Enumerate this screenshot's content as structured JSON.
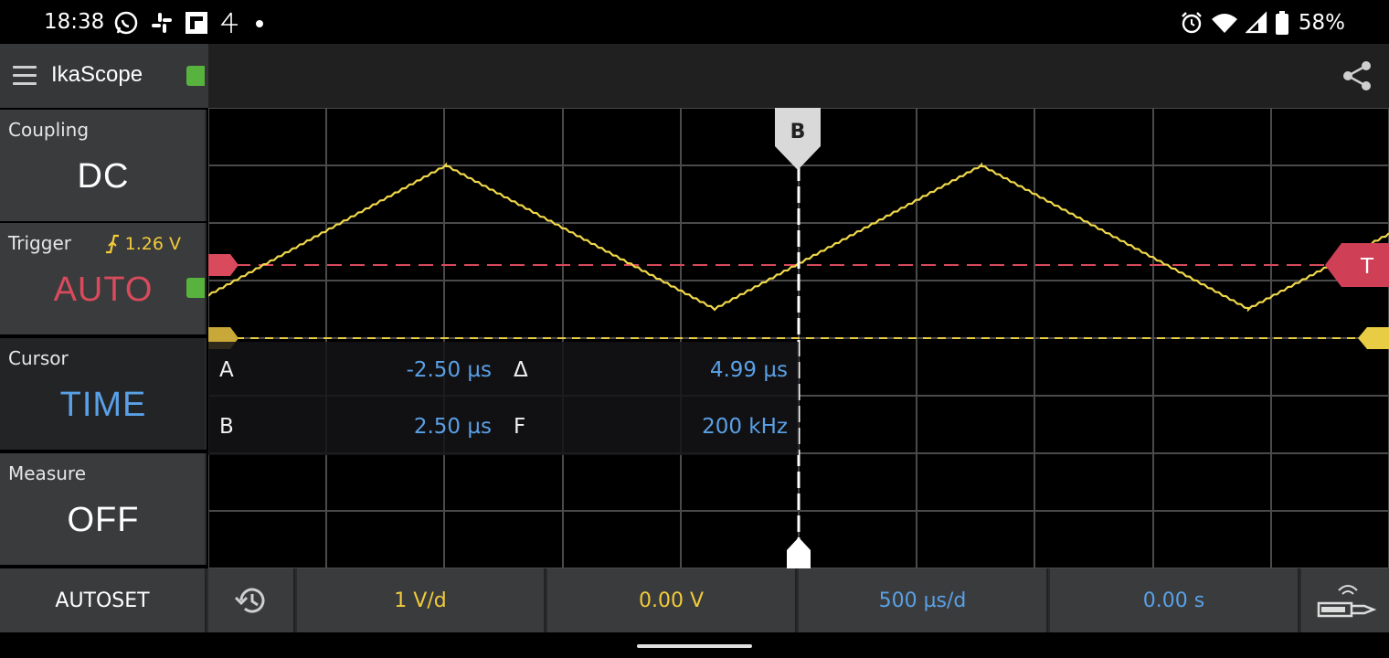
{
  "status_bar": {
    "time": "18:38",
    "battery_percent": "58%",
    "left_icons": [
      "whatsapp-icon",
      "slack-icon",
      "flipboard-icon",
      "channel4-icon",
      "dot-icon"
    ],
    "right_icons": [
      "alarm-icon",
      "wifi-icon",
      "signal-icon",
      "battery-icon"
    ]
  },
  "app": {
    "title": "IkaScope",
    "connection_indicator_color": "#57b33d"
  },
  "controls": {
    "coupling": {
      "label": "Coupling",
      "value": "DC",
      "value_color": "#ffffff"
    },
    "trigger": {
      "label": "Trigger",
      "level": "1.26 V",
      "value": "AUTO",
      "value_color": "#d84a5c"
    },
    "cursor": {
      "label": "Cursor",
      "value": "TIME",
      "value_color": "#5aa0e6"
    },
    "measure": {
      "label": "Measure",
      "value": "OFF",
      "value_color": "#ffffff"
    }
  },
  "scope": {
    "cursor_b_label": "B",
    "trigger_marker_label": "T",
    "trace_color": "#f0d84a",
    "trigger_line_color": "#d84a5c",
    "cursor_table": {
      "a_key": "A",
      "a_value": "-2.50 µs",
      "delta_key": "Δ",
      "delta_value": "4.99 µs",
      "b_key": "B",
      "b_value": "2.50 µs",
      "f_key": "F",
      "f_value": "200 kHz"
    }
  },
  "bottom_bar": {
    "autoset": "AUTOSET",
    "volts_per_div": "1 V/d",
    "offset": "0.00 V",
    "time_per_div": "500 µs/d",
    "time_offset": "0.00 s",
    "volt_color": "#f2cb3b",
    "time_color": "#5aa0e6"
  }
}
